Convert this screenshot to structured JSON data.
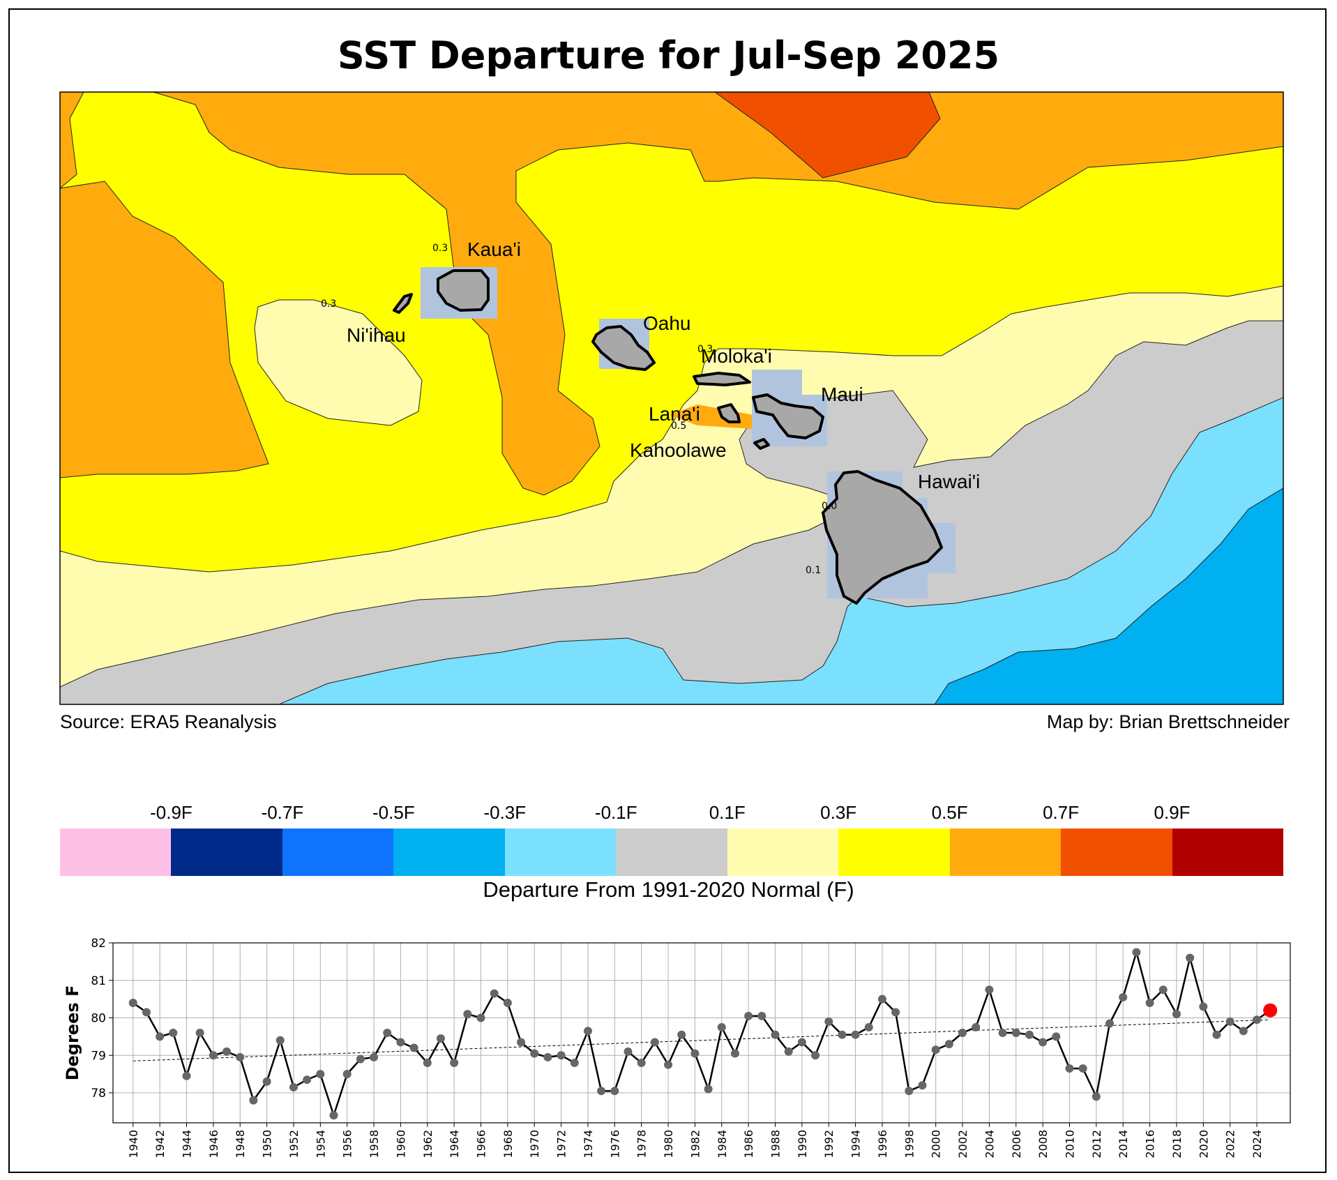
{
  "title": "SST Departure for Jul-Sep 2025",
  "footer": {
    "source": "Source: ERA5 Reanalysis",
    "credit": "Map by: Brian Brettschneider"
  },
  "islands": {
    "kauai": "Kaua'i",
    "niihau": "Ni'ihau",
    "oahu": "Oahu",
    "molokai": "Moloka'i",
    "maui": "Maui",
    "lanai": "Lana'i",
    "kahoolawe": "Kahoolawe",
    "hawaii": "Hawai'i"
  },
  "contour_labels": {
    "c1": "0.3",
    "c2": "0.3",
    "c3": "0.3",
    "c4": "0.5",
    "c5": "0.0",
    "c6": "0.1"
  },
  "colorbar": {
    "title": "Departure From 1991-2020 Normal (F)",
    "ticks": [
      "-0.9F",
      "-0.7F",
      "-0.5F",
      "-0.3F",
      "-0.1F",
      "0.1F",
      "0.3F",
      "0.5F",
      "0.7F",
      "0.9F"
    ],
    "colors": [
      "#ffc0e6",
      "#002a8a",
      "#0e74fe",
      "#00b0f0",
      "#7be0fe",
      "#cccccc",
      "#fffcb0",
      "#ffff00",
      "#ffab0e",
      "#f05000",
      "#b00000"
    ]
  },
  "colors": {
    "land": "#a8a8a8",
    "land_box": "#b0c4de",
    "marker_current": "#ff0000",
    "marker": "#666666"
  },
  "chart_data": {
    "type": "line",
    "title": "",
    "xlabel": "",
    "ylabel": "Degrees F",
    "x": [
      1940,
      1941,
      1942,
      1943,
      1944,
      1945,
      1946,
      1947,
      1948,
      1949,
      1950,
      1951,
      1952,
      1953,
      1954,
      1955,
      1956,
      1957,
      1958,
      1959,
      1960,
      1961,
      1962,
      1963,
      1964,
      1965,
      1966,
      1967,
      1968,
      1969,
      1970,
      1971,
      1972,
      1973,
      1974,
      1975,
      1976,
      1977,
      1978,
      1979,
      1980,
      1981,
      1982,
      1983,
      1984,
      1985,
      1986,
      1987,
      1988,
      1989,
      1990,
      1991,
      1992,
      1993,
      1994,
      1995,
      1996,
      1997,
      1998,
      1999,
      2000,
      2001,
      2002,
      2003,
      2004,
      2005,
      2006,
      2007,
      2008,
      2009,
      2010,
      2011,
      2012,
      2013,
      2014,
      2015,
      2016,
      2017,
      2018,
      2019,
      2020,
      2021,
      2022,
      2023,
      2024,
      2025
    ],
    "values": [
      80.4,
      80.15,
      79.5,
      79.6,
      78.45,
      79.6,
      79.0,
      79.1,
      78.95,
      77.8,
      78.3,
      79.4,
      78.15,
      78.35,
      78.5,
      77.4,
      78.5,
      78.9,
      78.95,
      79.6,
      79.35,
      79.2,
      78.8,
      79.45,
      78.8,
      80.1,
      80.0,
      80.65,
      80.4,
      79.35,
      79.05,
      78.95,
      79.0,
      78.8,
      79.65,
      78.05,
      78.05,
      79.1,
      78.8,
      79.35,
      78.75,
      79.55,
      79.05,
      78.1,
      79.75,
      79.05,
      80.05,
      80.05,
      79.55,
      79.1,
      79.35,
      79.0,
      79.9,
      79.55,
      79.55,
      79.75,
      80.5,
      80.15,
      78.05,
      78.2,
      79.15,
      79.3,
      79.6,
      79.75,
      80.75,
      79.6,
      79.6,
      79.55,
      79.35,
      79.5,
      78.65,
      78.65,
      77.9,
      79.85,
      80.55,
      81.75,
      80.4,
      80.75,
      80.1,
      81.6,
      80.3,
      79.55,
      79.9,
      79.65,
      79.95,
      80.2
    ],
    "trend": {
      "start": 78.85,
      "end": 79.95
    },
    "ylim": [
      77.2,
      82.0
    ],
    "yticks": [
      78,
      79,
      80,
      81,
      82
    ],
    "xticks": [
      1940,
      1942,
      1944,
      1946,
      1948,
      1950,
      1952,
      1954,
      1956,
      1958,
      1960,
      1962,
      1964,
      1966,
      1968,
      1970,
      1972,
      1974,
      1976,
      1978,
      1980,
      1982,
      1984,
      1986,
      1988,
      1990,
      1992,
      1994,
      1996,
      1998,
      2000,
      2002,
      2004,
      2006,
      2008,
      2010,
      2012,
      2014,
      2016,
      2018,
      2020,
      2022,
      2024
    ],
    "highlight_year": 2025,
    "grid": true
  }
}
